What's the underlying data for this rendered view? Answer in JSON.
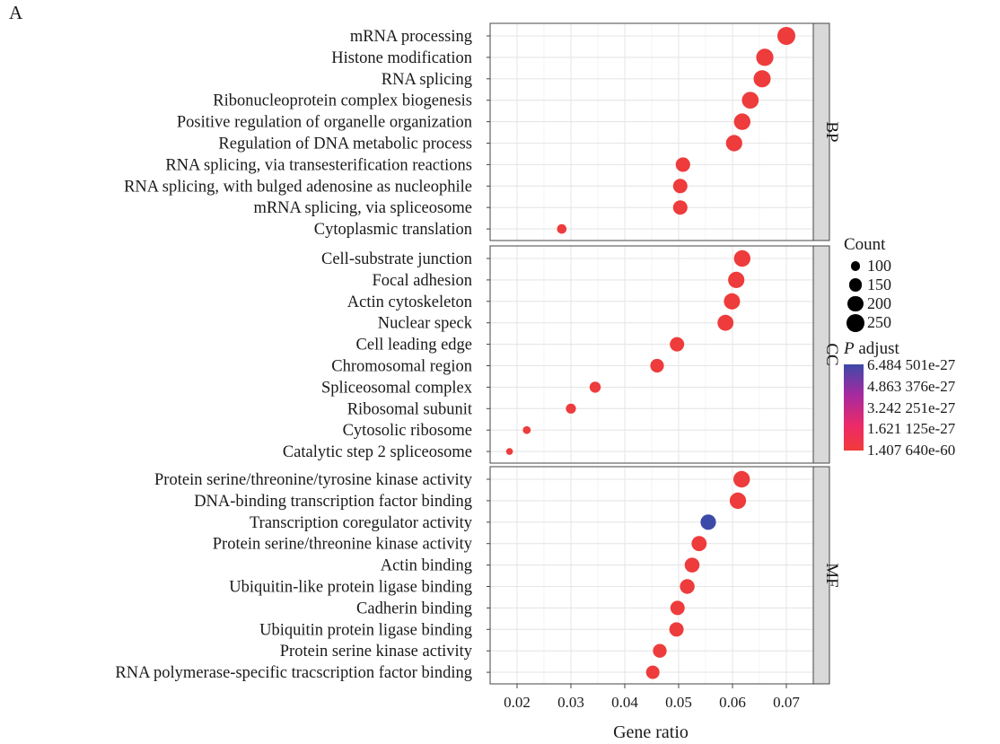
{
  "panel_label": "A",
  "chart_data": {
    "type": "scatter",
    "xlabel": "Gene ratio",
    "xlim": [
      0.015,
      0.075
    ],
    "xticks": [
      0.02,
      0.03,
      0.04,
      0.05,
      0.06,
      0.07
    ],
    "xtick_labels": [
      "0.02",
      "0.03",
      "0.04",
      "0.05",
      "0.06",
      "0.07"
    ],
    "grid": true,
    "facets": [
      {
        "name": "BP",
        "terms": [
          {
            "label": "mRNA processing",
            "gene_ratio": 0.07,
            "count": 250,
            "p_adjust": 1.41e-60
          },
          {
            "label": "Histone modification",
            "gene_ratio": 0.066,
            "count": 235,
            "p_adjust": 1.41e-60
          },
          {
            "label": "RNA splicing",
            "gene_ratio": 0.0655,
            "count": 232,
            "p_adjust": 1.41e-60
          },
          {
            "label": "Ribonucleoprotein complex biogenesis",
            "gene_ratio": 0.0633,
            "count": 225,
            "p_adjust": 1.41e-60
          },
          {
            "label": "Positive regulation of organelle organization",
            "gene_ratio": 0.0618,
            "count": 220,
            "p_adjust": 1.41e-60
          },
          {
            "label": "Regulation of DNA metabolic process",
            "gene_ratio": 0.0603,
            "count": 215,
            "p_adjust": 1.41e-60
          },
          {
            "label": "RNA splicing, via transesterification reactions",
            "gene_ratio": 0.0508,
            "count": 180,
            "p_adjust": 1.41e-60
          },
          {
            "label": "RNA splicing, with bulged adenosine as nucleophile",
            "gene_ratio": 0.0503,
            "count": 178,
            "p_adjust": 1.41e-60
          },
          {
            "label": "mRNA splicing, via spliceosome",
            "gene_ratio": 0.0503,
            "count": 178,
            "p_adjust": 1.41e-60
          },
          {
            "label": "Cytoplasmic translation",
            "gene_ratio": 0.0283,
            "count": 100,
            "p_adjust": 1.41e-60
          }
        ]
      },
      {
        "name": "CC",
        "terms": [
          {
            "label": "Cell-substrate junction",
            "gene_ratio": 0.0618,
            "count": 220,
            "p_adjust": 1.41e-60
          },
          {
            "label": "Focal adhesion",
            "gene_ratio": 0.0607,
            "count": 216,
            "p_adjust": 1.41e-60
          },
          {
            "label": "Actin cytoskeleton",
            "gene_ratio": 0.0599,
            "count": 213,
            "p_adjust": 1.41e-60
          },
          {
            "label": "Nuclear speck",
            "gene_ratio": 0.0587,
            "count": 209,
            "p_adjust": 1.41e-60
          },
          {
            "label": "Cell leading edge",
            "gene_ratio": 0.0497,
            "count": 177,
            "p_adjust": 1.41e-60
          },
          {
            "label": "Chromosomal region",
            "gene_ratio": 0.046,
            "count": 164,
            "p_adjust": 1.41e-60
          },
          {
            "label": "Spliceosomal complex",
            "gene_ratio": 0.0345,
            "count": 123,
            "p_adjust": 1.41e-60
          },
          {
            "label": "Ribosomal subunit",
            "gene_ratio": 0.03,
            "count": 107,
            "p_adjust": 1.41e-60
          },
          {
            "label": "Cytosolic ribosome",
            "gene_ratio": 0.0218,
            "count": 78,
            "p_adjust": 1.41e-60
          },
          {
            "label": "Catalytic step 2 spliceosome",
            "gene_ratio": 0.0186,
            "count": 66,
            "p_adjust": 1.41e-60
          }
        ]
      },
      {
        "name": "MF",
        "terms": [
          {
            "label": "Protein serine/threonine/tyrosine kinase activity",
            "gene_ratio": 0.0617,
            "count": 220,
            "p_adjust": 1.41e-60
          },
          {
            "label": "DNA-binding transcription factor binding",
            "gene_ratio": 0.061,
            "count": 217,
            "p_adjust": 1.41e-60
          },
          {
            "label": "Transcription coregulator activity",
            "gene_ratio": 0.0555,
            "count": 198,
            "p_adjust": 6.48e-27
          },
          {
            "label": "Protein serine/threonine kinase activity",
            "gene_ratio": 0.0538,
            "count": 192,
            "p_adjust": 1.41e-60
          },
          {
            "label": "Actin binding",
            "gene_ratio": 0.0525,
            "count": 187,
            "p_adjust": 1.41e-60
          },
          {
            "label": "Ubiquitin-like protein ligase binding",
            "gene_ratio": 0.0516,
            "count": 184,
            "p_adjust": 1.41e-60
          },
          {
            "label": "Cadherin binding",
            "gene_ratio": 0.0498,
            "count": 177,
            "p_adjust": 1.41e-60
          },
          {
            "label": "Ubiquitin protein ligase binding",
            "gene_ratio": 0.0496,
            "count": 177,
            "p_adjust": 1.41e-60
          },
          {
            "label": "Protein serine kinase activity",
            "gene_ratio": 0.0465,
            "count": 166,
            "p_adjust": 1.41e-60
          },
          {
            "label": "RNA polymerase-specific tracscription factor binding",
            "gene_ratio": 0.0452,
            "count": 161,
            "p_adjust": 1.41e-60
          }
        ]
      }
    ],
    "legend": {
      "placement": "right",
      "size": {
        "title": "Count",
        "breaks": [
          100,
          150,
          200,
          250
        ],
        "labels": [
          "100",
          "150",
          "200",
          "250"
        ]
      },
      "color": {
        "title_italic": "P",
        "title_rest": " adjust",
        "labels": [
          "6.484 501e-27",
          "4.863 376e-27",
          "3.242 251e-27",
          "1.621 125e-27",
          "1.407 640e-60"
        ],
        "low_color": "#f03a3a",
        "high_color": "#3c4aa8"
      }
    },
    "colors": {
      "panel_background": "#ffffff",
      "grid": "#e6e6e6",
      "strip_background": "#d9d9d9",
      "point_low": "#ee3b3b",
      "point_high": "#3c4aa8"
    }
  }
}
